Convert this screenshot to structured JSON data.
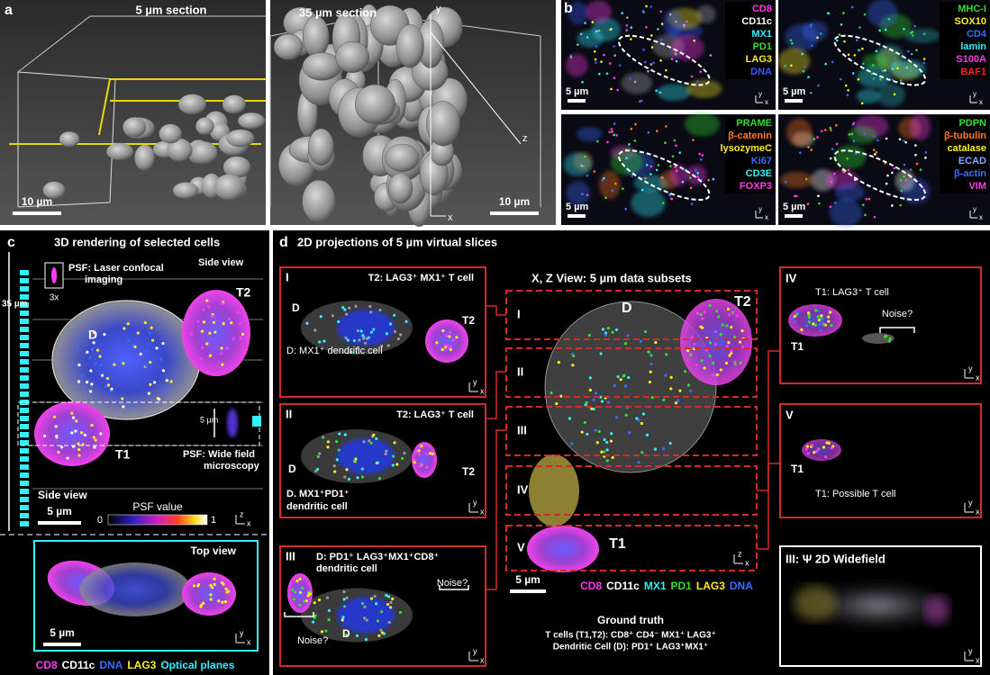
{
  "panel_a": {
    "label": "a",
    "left_title": "5 µm section",
    "left_scale": "10 µm",
    "right_title": "35 µm section",
    "right_scale": "10 µm",
    "axis_y": "y",
    "axis_z": "z",
    "axis_x": "x"
  },
  "panel_b": {
    "label": "b",
    "images": [
      {
        "markers": [
          {
            "name": "CD8",
            "color": "#ff3cf0"
          },
          {
            "name": "CD11c",
            "color": "#ffffff"
          },
          {
            "name": "MX1",
            "color": "#33f0ff"
          },
          {
            "name": "PD1",
            "color": "#33dd33"
          },
          {
            "name": "LAG3",
            "color": "#ffee22"
          },
          {
            "name": "DNA",
            "color": "#3a5cff"
          }
        ],
        "scale": "5 µm",
        "axis_y": "y",
        "axis_x": "x"
      },
      {
        "markers": [
          {
            "name": "MHC-I",
            "color": "#33dd33"
          },
          {
            "name": "SOX10",
            "color": "#ffee22"
          },
          {
            "name": "CD4",
            "color": "#3a6cff"
          },
          {
            "name": "lamin",
            "color": "#33f0ff"
          },
          {
            "name": "S100A",
            "color": "#ff3cf0"
          },
          {
            "name": "BAF1",
            "color": "#ff2222"
          }
        ],
        "scale": "5 µm",
        "axis_y": "y",
        "axis_x": "x"
      },
      {
        "markers": [
          {
            "name": "PRAME",
            "color": "#33dd33"
          },
          {
            "name": "β-catenin",
            "color": "#ff7a22"
          },
          {
            "name": "lysozymeC",
            "color": "#ffee22"
          },
          {
            "name": "Ki67",
            "color": "#3a6cff"
          },
          {
            "name": "CD3E",
            "color": "#33f0ff"
          },
          {
            "name": "FOXP3",
            "color": "#ff3cf0"
          }
        ],
        "scale": "5 µm",
        "axis_y": "y",
        "axis_x": "x"
      },
      {
        "markers": [
          {
            "name": "PDPN",
            "color": "#33dd33"
          },
          {
            "name": "β-tubulin",
            "color": "#ff7a22"
          },
          {
            "name": "catalase",
            "color": "#ffee22"
          },
          {
            "name": "ECAD",
            "color": "#8aa8ff"
          },
          {
            "name": "β-actin",
            "color": "#3a6cff"
          },
          {
            "name": "VIM",
            "color": "#ff3cf0"
          }
        ],
        "scale": "5 µm",
        "axis_y": "y",
        "axis_x": "x"
      }
    ]
  },
  "panel_c": {
    "label": "c",
    "title": "3D rendering of selected cells",
    "psf_confocal": [
      "PSF: Laser confocal",
      "imaging"
    ],
    "zoom": "3x",
    "side_view_top": "Side view",
    "depth": "35 µm",
    "cells": [
      "T2",
      "D",
      "T1"
    ],
    "psf_depth": "5 µm",
    "psf_widefield": [
      "PSF: Wide field",
      "microscopy"
    ],
    "side_view_bottom": "Side view",
    "side_scale": "5 µm",
    "psf_value_label": "PSF value",
    "psf_ticks": [
      0,
      1
    ],
    "axes_side": [
      "z",
      "x"
    ],
    "top_view": "Top view",
    "top_scale": "5 µm",
    "axes_top": [
      "y",
      "x"
    ],
    "legend": [
      {
        "name": "CD8",
        "color": "#ff3cf0"
      },
      {
        "name": "CD11c",
        "color": "#ffffff"
      },
      {
        "name": "DNA",
        "color": "#3a6cff"
      },
      {
        "name": "LAG3",
        "color": "#ffee22"
      },
      {
        "name": "Optical planes",
        "color": "#33f0ff"
      }
    ]
  },
  "panel_d": {
    "label": "d",
    "title": "2D projections of 5 µm virtual slices",
    "left_boxes": [
      {
        "id": "I",
        "caption": [
          "T2: LAG3⁺ MX1⁺ T cell"
        ],
        "cells": [
          "D",
          "T2"
        ],
        "note": [
          "D: MX1⁺ dendritic cell"
        ],
        "axes": [
          "y",
          "x"
        ]
      },
      {
        "id": "II",
        "caption": [
          "T2: LAG3⁺ T cell"
        ],
        "cells": [
          "D",
          "T2"
        ],
        "note": [
          "D. MX1⁺PD1⁺",
          "dendritic cell"
        ],
        "axes": [
          "y",
          "x"
        ]
      },
      {
        "id": "III",
        "caption": [
          "D: PD1⁺ LAG3⁺MX1⁺CD8⁺",
          "dendritic cell"
        ],
        "cells": [
          "D"
        ],
        "noise": [
          "Noise?",
          "Noise?"
        ],
        "axes": [
          "y",
          "x"
        ]
      }
    ],
    "middle": {
      "title": "X, Z View: 5 µm data subsets",
      "slices": [
        "I",
        "II",
        "III",
        "IV",
        "V"
      ],
      "cells": [
        "D",
        "T2",
        "T1"
      ],
      "scale": "5 µm",
      "axes": [
        "z",
        "x"
      ],
      "legend": [
        {
          "name": "CD8",
          "color": "#ff3cf0"
        },
        {
          "name": "CD11c",
          "color": "#ffffff"
        },
        {
          "name": "MX1",
          "color": "#33f0ff"
        },
        {
          "name": "PD1",
          "color": "#33dd33"
        },
        {
          "name": "LAG3",
          "color": "#ffee22"
        },
        {
          "name": "DNA",
          "color": "#3a6cff"
        }
      ],
      "ground_truth": {
        "title": "Ground truth",
        "lines": [
          "T cells (T1,T2): CD8⁺ CD4⁻ MX1⁺ LAG3⁺",
          "Dendritic Cell (D): PD1⁺ LAG3⁺MX1⁺"
        ]
      }
    },
    "right_boxes": [
      {
        "id": "IV",
        "caption": "T1: LAG3⁺ T cell",
        "cell": "T1",
        "noise": "Noise?",
        "axes": [
          "y",
          "x"
        ]
      },
      {
        "id": "V",
        "caption": "T1: Possible  T cell",
        "cell": "T1",
        "axes": [
          "y",
          "x"
        ]
      }
    ],
    "widefield": {
      "title": "III: Ψ 2D Widefield",
      "axes": [
        "y",
        "x"
      ]
    }
  }
}
